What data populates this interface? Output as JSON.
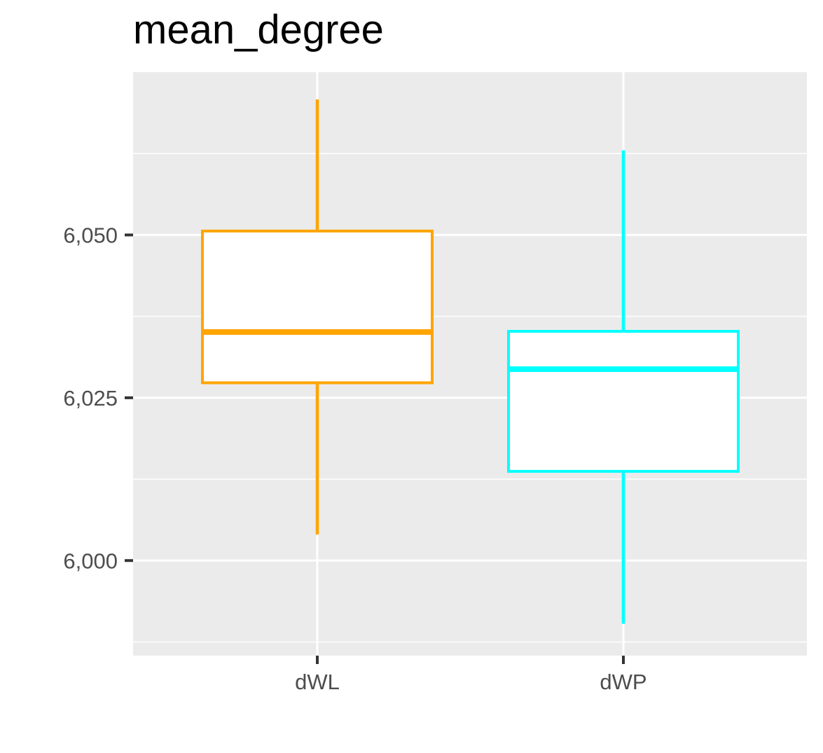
{
  "chart_data": {
    "type": "boxplot",
    "title": "mean_degree",
    "xlabel": "",
    "ylabel": "",
    "categories": [
      "dWL",
      "dWP"
    ],
    "series": [
      {
        "category": "dWL",
        "color": "#FFA500",
        "whisker_low": 6004,
        "q1": 6027.3,
        "median": 6035.1,
        "q3": 6050.6,
        "whisker_high": 6070.8
      },
      {
        "category": "dWP",
        "color": "#00FFFF",
        "whisker_low": 5990.3,
        "q1": 6013.7,
        "median": 6029.4,
        "q3": 6035.2,
        "whisker_high": 6063
      }
    ],
    "yticks": [
      6000,
      6025,
      6050
    ],
    "ytick_labels": [
      "6,000",
      "6,025",
      "6,050"
    ],
    "ylim": [
      5985.4,
      6075.0
    ],
    "grid": true,
    "panel_color": "#EBEBEB",
    "grid_color": "#FFFFFF"
  }
}
